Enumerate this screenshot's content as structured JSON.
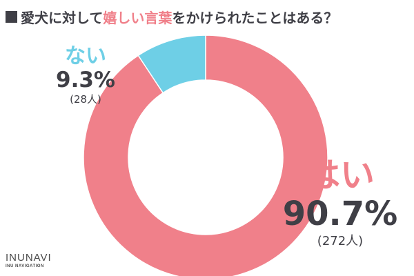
{
  "title": {
    "part1": "愛犬に対して",
    "highlight": "嬉しい言葉",
    "part2": "をかけられたことはある？"
  },
  "colors": {
    "yes": "#f0808a",
    "no": "#6ecfe6",
    "text": "#3f3f46"
  },
  "chart_data": {
    "type": "pie",
    "title": "愛犬に対して嬉しい言葉をかけられたことはある？",
    "slices": [
      {
        "label": "はい",
        "percent": "90.7%",
        "count": "(272人)",
        "value": 90.7
      },
      {
        "label": "ない",
        "percent": "9.3%",
        "count": "(28人)",
        "value": 9.3
      }
    ]
  },
  "logo": {
    "main": "INUNAVI",
    "sub": "INU NAVIGATION"
  }
}
